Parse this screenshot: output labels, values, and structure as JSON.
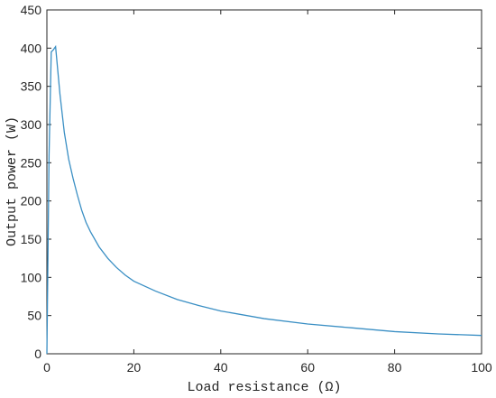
{
  "chart_data": {
    "type": "line",
    "title": "",
    "xlabel": "Load resistance (Ω)",
    "ylabel": "Output power (W)",
    "xlim": [
      0,
      100
    ],
    "ylim": [
      0,
      450
    ],
    "xticks": [
      0,
      20,
      40,
      60,
      80,
      100
    ],
    "yticks": [
      0,
      50,
      100,
      150,
      200,
      250,
      300,
      350,
      400,
      450
    ],
    "grid": false,
    "legend": "none",
    "line_color": "#3a8fc4",
    "series": [
      {
        "x": [
          0,
          0.5,
          1,
          1.5,
          2,
          3,
          4,
          5,
          6,
          7,
          8,
          9,
          10,
          12,
          14,
          16,
          18,
          20,
          25,
          30,
          35,
          40,
          50,
          60,
          70,
          80,
          90,
          100
        ],
        "y": [
          0,
          260,
          395,
          398,
          402,
          340,
          290,
          255,
          230,
          208,
          188,
          172,
          160,
          140,
          125,
          113,
          103,
          95,
          82,
          71,
          63,
          56,
          46,
          39,
          34,
          29,
          26,
          24
        ]
      }
    ]
  }
}
